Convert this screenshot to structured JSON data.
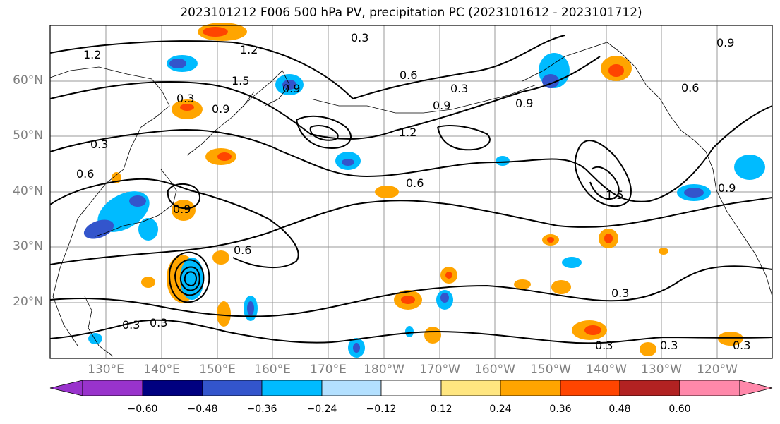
{
  "title": "2023101212 F006 500 hPa PV, precipitation PC (2023101612 - 2023101712)",
  "lat_labels": [
    "60°N",
    "50°N",
    "40°N",
    "30°N",
    "20°N"
  ],
  "lon_labels": [
    "130°E",
    "140°E",
    "150°E",
    "160°E",
    "170°E",
    "180°W",
    "170°W",
    "160°W",
    "150°W",
    "140°W",
    "130°W",
    "120°W"
  ],
  "colorbar": {
    "ticks": [
      "−0.60",
      "−0.48",
      "−0.36",
      "−0.24",
      "−0.12",
      "0.12",
      "0.24",
      "0.36",
      "0.48",
      "0.60"
    ],
    "colors": [
      "#9933cc",
      "#000080",
      "#3355cc",
      "#00bbff",
      "#b3e0ff",
      "#ffffff",
      "#ffe680",
      "#ffa500",
      "#ff4500",
      "#b22222",
      "#ff88aa"
    ]
  },
  "contour_labels": [
    "1.2",
    "1.2",
    "0.3",
    "1.5",
    "0.9",
    "0.3",
    "0.9",
    "0.3",
    "0.6",
    "1.2",
    "0.6",
    "0.3",
    "0.9",
    "1.5",
    "0.6",
    "0.9",
    "0.6",
    "0.9",
    "0.6",
    "0.3",
    "0.3",
    "0.3",
    "0.3",
    "0.3",
    "0.3",
    "0.9",
    "0.9"
  ]
}
